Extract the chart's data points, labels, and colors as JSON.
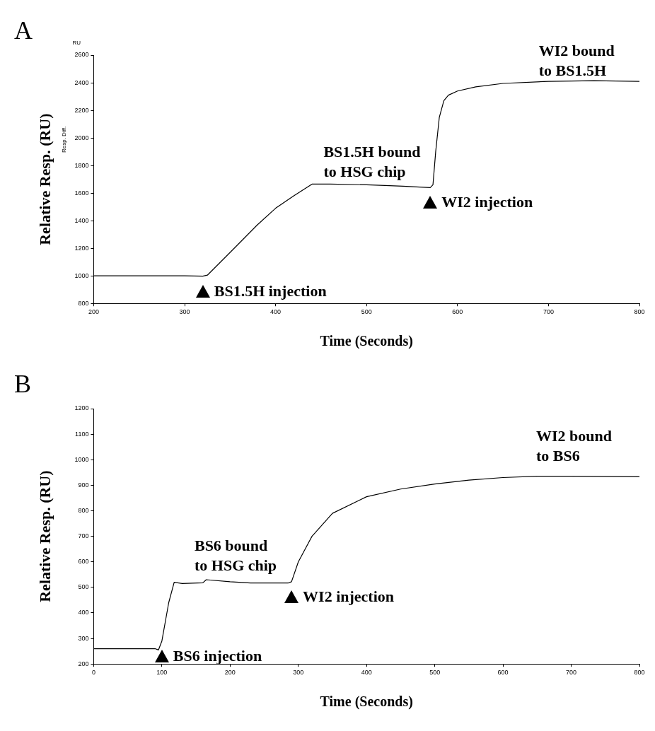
{
  "chart_data": [
    {
      "type": "line",
      "title": "A",
      "xlabel": "Time (Seconds)",
      "ylabel": "Relative Resp. (RU)",
      "xlim": [
        200,
        800
      ],
      "xticks": [
        200,
        300,
        400,
        500,
        600,
        700,
        800
      ],
      "ylim": [
        800,
        2600
      ],
      "yticks": [
        800,
        1000,
        1200,
        1400,
        1600,
        1800,
        2000,
        2200,
        2400,
        2600
      ],
      "grid": false,
      "legend": false,
      "marker": "none",
      "line_style": "solid",
      "series": [
        {
          "color": "#000000",
          "x": [
            200,
            250,
            300,
            320,
            325,
            350,
            380,
            400,
            420,
            440,
            460,
            500,
            540,
            570,
            573,
            576,
            580,
            585,
            590,
            600,
            620,
            650,
            700,
            750,
            800
          ],
          "values": [
            1000,
            1000,
            1000,
            998,
            1005,
            1170,
            1370,
            1490,
            1580,
            1665,
            1665,
            1660,
            1650,
            1640,
            1660,
            1900,
            2150,
            2270,
            2310,
            2340,
            2370,
            2395,
            2410,
            2415,
            2410
          ]
        }
      ],
      "annotations": [
        "RU",
        "Resp. Diff.",
        "BS1.5H bound\nto HSG chip",
        "WI2 bound\nto BS1.5H",
        {
          "text": "WI2 injection",
          "x": 570,
          "y": 1640
        },
        {
          "text": "BS1.5H injection",
          "x": 320,
          "y": 998
        }
      ]
    },
    {
      "type": "line",
      "title": "B",
      "xlabel": "Time (Seconds)",
      "ylabel": "Relative Resp. (RU)",
      "xlim": [
        0,
        800
      ],
      "xticks": [
        0,
        100,
        200,
        300,
        400,
        500,
        600,
        700,
        800
      ],
      "ylim": [
        200,
        1200
      ],
      "yticks": [
        200,
        300,
        400,
        500,
        600,
        700,
        800,
        900,
        1000,
        1100,
        1200
      ],
      "grid": false,
      "legend": false,
      "marker": "none",
      "line_style": "solid",
      "series": [
        {
          "color": "#000000",
          "x": [
            0,
            90,
            95,
            100,
            110,
            118,
            130,
            160,
            165,
            200,
            230,
            285,
            290,
            300,
            320,
            350,
            400,
            450,
            500,
            550,
            600,
            650,
            700,
            800
          ],
          "values": [
            260,
            260,
            255,
            290,
            440,
            520,
            515,
            518,
            530,
            522,
            517,
            517,
            522,
            600,
            700,
            790,
            855,
            885,
            905,
            920,
            930,
            935,
            935,
            933
          ]
        }
      ],
      "annotations": [
        "BS6 bound\nto HSG chip",
        "WI2 bound\nto BS6",
        {
          "text": "WI2 injection",
          "x": 290,
          "y": 522
        },
        {
          "text": "BS6 injection",
          "x": 100,
          "y": 290
        }
      ]
    }
  ]
}
